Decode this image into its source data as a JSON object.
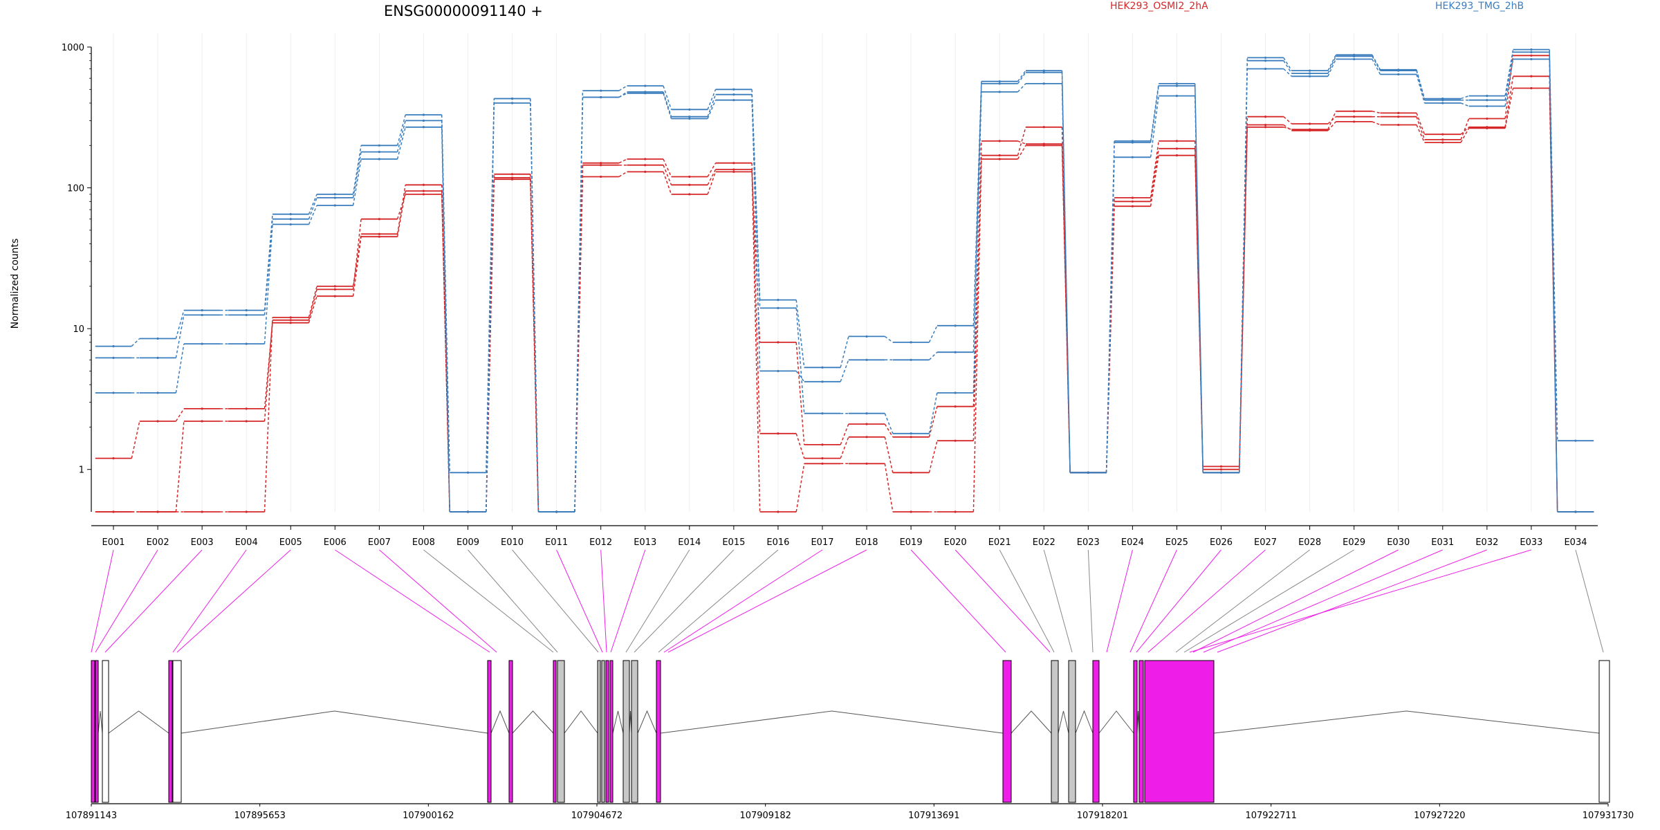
{
  "chart_data": {
    "type": "line",
    "title": "ENSG00000091140 +",
    "ylabel": "Normalized counts",
    "y_scale": "log",
    "ylim": [
      0.5,
      1000
    ],
    "y_ticks": [
      {
        "value": 1,
        "label": "1"
      },
      {
        "value": 10,
        "label": "10"
      },
      {
        "value": 100,
        "label": "100"
      },
      {
        "value": 1000,
        "label": "1000"
      }
    ],
    "categories": [
      "E001",
      "E002",
      "E003",
      "E004",
      "E005",
      "E006",
      "E007",
      "E008",
      "E009",
      "E010",
      "E011",
      "E012",
      "E013",
      "E014",
      "E015",
      "E016",
      "E017",
      "E018",
      "E019",
      "E020",
      "E021",
      "E022",
      "E023",
      "E024",
      "E025",
      "E026",
      "E027",
      "E028",
      "E029",
      "E030",
      "E031",
      "E032",
      "E033",
      "E034"
    ],
    "legend": [
      {
        "name": "HEK293_OSMI2_2hA",
        "color": "#d62728"
      },
      {
        "name": "HEK293_TMG_2hB",
        "color": "#3a7dbd"
      }
    ],
    "series": [
      {
        "group": "HEK293_OSMI2_2hA",
        "color": "#d62728",
        "values": [
          1.2,
          2.2,
          2.7,
          2.7,
          11,
          17,
          45,
          95,
          0.5,
          125,
          0.5,
          120,
          130,
          90,
          130,
          8,
          1.5,
          2.1,
          1.7,
          2.8,
          170,
          270,
          0.95,
          74,
          170,
          1.05,
          270,
          260,
          350,
          340,
          240,
          270,
          620,
          0.5
        ]
      },
      {
        "group": "HEK293_OSMI2_2hA",
        "color": "#d62728",
        "values": [
          0.5,
          0.5,
          2.2,
          2.2,
          11.5,
          19,
          60,
          90,
          0.5,
          118,
          0.5,
          150,
          160,
          120,
          150,
          1.8,
          1.2,
          1.7,
          0.95,
          1.6,
          215,
          205,
          0.95,
          80,
          190,
          1.0,
          320,
          285,
          320,
          320,
          220,
          310,
          870,
          0.5
        ]
      },
      {
        "group": "HEK293_OSMI2_2hA",
        "color": "#d62728",
        "values": [
          0.5,
          0.5,
          0.5,
          0.5,
          12,
          20,
          47,
          105,
          0.5,
          115,
          0.5,
          145,
          145,
          105,
          135,
          0.5,
          1.1,
          1.1,
          0.5,
          0.5,
          160,
          200,
          0.95,
          85,
          215,
          0.95,
          280,
          255,
          295,
          280,
          210,
          265,
          510,
          0.5
        ]
      },
      {
        "group": "HEK293_TMG_2hB",
        "color": "#3a7dbd",
        "values": [
          7.5,
          8.5,
          13.5,
          13.5,
          65,
          90,
          200,
          330,
          0.95,
          430,
          0.5,
          490,
          530,
          360,
          500,
          16,
          5.3,
          8.8,
          8.0,
          10.5,
          570,
          680,
          0.95,
          215,
          550,
          0.95,
          840,
          680,
          880,
          690,
          430,
          450,
          960,
          1.6
        ]
      },
      {
        "group": "HEK293_TMG_2hB",
        "color": "#3a7dbd",
        "values": [
          6.2,
          6.2,
          12.5,
          12.5,
          60,
          85,
          180,
          300,
          0.5,
          400,
          0.5,
          440,
          480,
          320,
          460,
          5.0,
          4.2,
          6.0,
          6.0,
          6.8,
          550,
          660,
          0.95,
          210,
          530,
          0.95,
          800,
          650,
          860,
          680,
          420,
          420,
          920,
          0.5
        ]
      },
      {
        "group": "HEK293_TMG_2hB",
        "color": "#3a7dbd",
        "values": [
          3.5,
          3.5,
          7.8,
          7.8,
          55,
          75,
          160,
          270,
          0.5,
          430,
          0.5,
          440,
          470,
          310,
          420,
          14,
          2.5,
          2.5,
          1.8,
          3.5,
          480,
          550,
          0.95,
          165,
          450,
          0.95,
          700,
          620,
          820,
          640,
          400,
          380,
          820,
          0.5
        ]
      }
    ],
    "genomic_ticks": [
      "107891143",
      "107895653",
      "107900162",
      "107904672",
      "107909182",
      "107913691",
      "107918201",
      "107922711",
      "107927220",
      "107931730"
    ]
  }
}
